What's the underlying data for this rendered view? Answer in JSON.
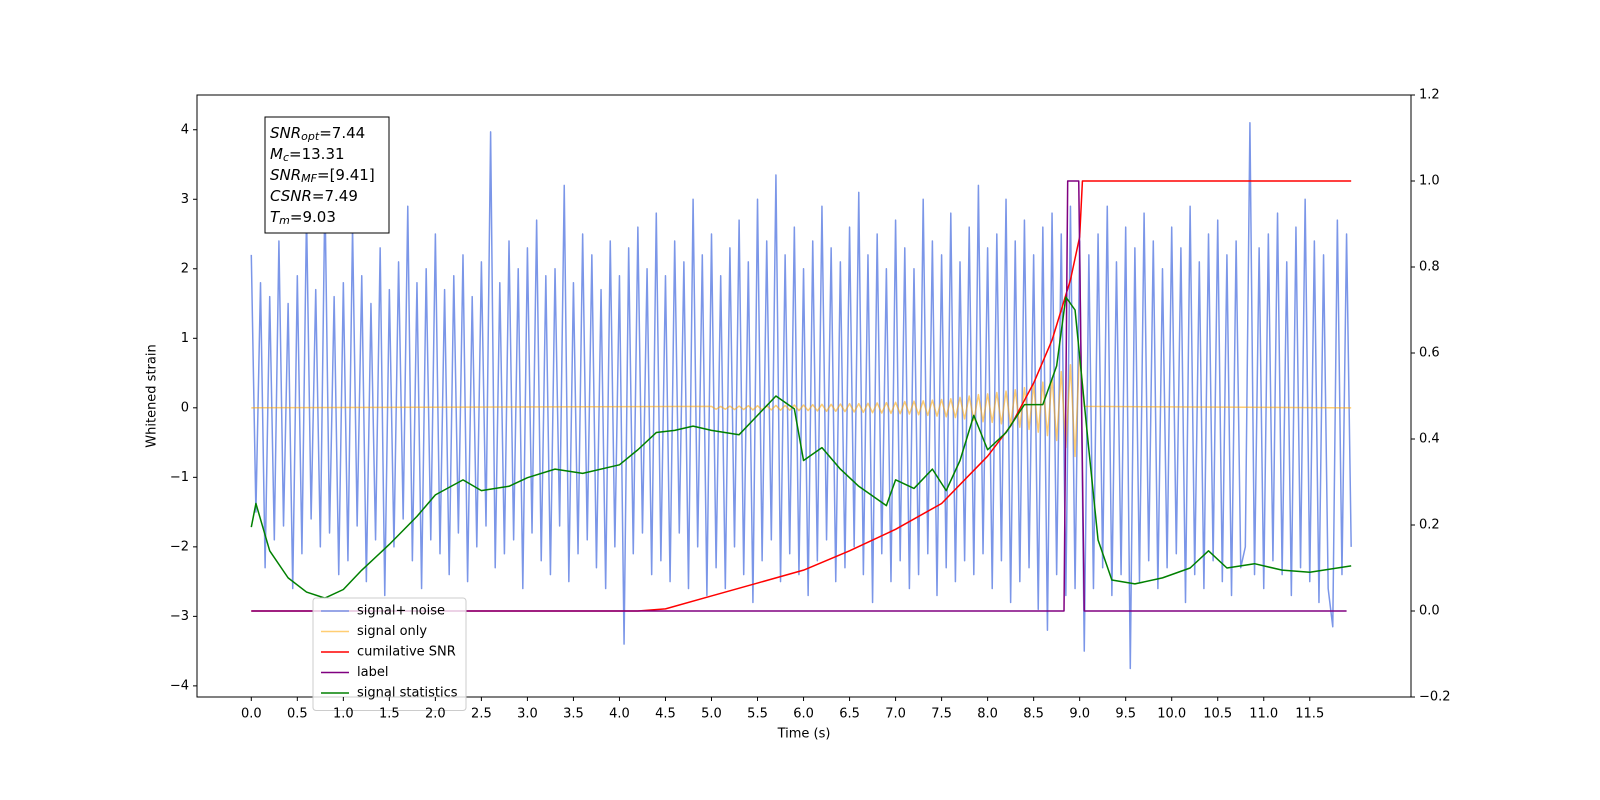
{
  "chart_data": {
    "type": "line",
    "xlabel": "Time (s)",
    "ylabel": "Whitened strain",
    "xlim": [
      -0.59,
      12.6
    ],
    "ylim": [
      -4.16,
      4.5
    ],
    "y2lim": [
      -0.2,
      1.2
    ],
    "xticks": [
      {
        "value": 0,
        "label": "0.0"
      },
      0.5,
      {
        "value": 1,
        "label": "1.0"
      },
      1.5,
      {
        "value": 2,
        "label": "2.0"
      },
      2.5,
      {
        "value": 3,
        "label": "3.0"
      },
      3.5,
      {
        "value": 4,
        "label": "4.0"
      },
      4.5,
      {
        "value": 5,
        "label": "5.0"
      },
      5.5,
      {
        "value": 6,
        "label": "6.0"
      },
      6.5,
      {
        "value": 7,
        "label": "7.0"
      },
      7.5,
      {
        "value": 8,
        "label": "8.0"
      },
      8.5,
      {
        "value": 9,
        "label": "9.0"
      },
      9.5,
      {
        "value": 10,
        "label": "10.0"
      },
      10.5,
      {
        "value": 11,
        "label": "11.0"
      },
      11.5
    ],
    "yticks": [
      {
        "value": -4,
        "label": "−4"
      },
      {
        "value": -3,
        "label": "−3"
      },
      {
        "value": -2,
        "label": "−2"
      },
      {
        "value": -1,
        "label": "−1"
      },
      0,
      1,
      2,
      3,
      4
    ],
    "y2ticks": [
      {
        "value": -0.2,
        "label": "−0.2"
      },
      {
        "value": 0,
        "label": "0.0"
      },
      0.2,
      0.4,
      0.6,
      0.8,
      {
        "value": 1,
        "label": "1.0"
      },
      1.2
    ],
    "legend": "lower left",
    "annotation": [
      {
        "text": "SNR",
        "sub": "opt",
        "rest": "=7.44"
      },
      {
        "text": "M",
        "sub": "c",
        "rest": "=13.31"
      },
      {
        "text": "SNR",
        "sub": "MF",
        "rest": "=[9.41]"
      },
      {
        "text": "CSNR",
        "sub": "",
        "rest": "=7.49"
      },
      {
        "text": "T",
        "sub": "m",
        "rest": "=9.03"
      }
    ],
    "series": [
      {
        "name": "signal+ noise",
        "color": "#7b96e8",
        "x": [
          0,
          0.05,
          0.1,
          0.15,
          0.2,
          0.25,
          0.3,
          0.35,
          0.4,
          0.45,
          0.5,
          0.55,
          0.6,
          0.65,
          0.7,
          0.75,
          0.8,
          0.85,
          0.9,
          0.95,
          1,
          1.05,
          1.1,
          1.15,
          1.2,
          1.25,
          1.3,
          1.35,
          1.4,
          1.45,
          1.5,
          1.55,
          1.6,
          1.65,
          1.7,
          1.75,
          1.8,
          1.85,
          1.9,
          1.95,
          2,
          2.05,
          2.1,
          2.15,
          2.2,
          2.25,
          2.3,
          2.35,
          2.4,
          2.45,
          2.5,
          2.55,
          2.6,
          2.65,
          2.7,
          2.75,
          2.8,
          2.85,
          2.9,
          2.95,
          3,
          3.05,
          3.1,
          3.15,
          3.2,
          3.25,
          3.3,
          3.35,
          3.4,
          3.45,
          3.5,
          3.55,
          3.6,
          3.65,
          3.7,
          3.75,
          3.8,
          3.85,
          3.9,
          3.95,
          4,
          4.05,
          4.1,
          4.15,
          4.2,
          4.25,
          4.3,
          4.35,
          4.4,
          4.45,
          4.5,
          4.55,
          4.6,
          4.65,
          4.7,
          4.75,
          4.8,
          4.85,
          4.9,
          4.95,
          5,
          5.05,
          5.1,
          5.15,
          5.2,
          5.25,
          5.3,
          5.35,
          5.4,
          5.45,
          5.5,
          5.55,
          5.6,
          5.65,
          5.7,
          5.75,
          5.8,
          5.85,
          5.9,
          5.95,
          6,
          6.05,
          6.1,
          6.15,
          6.2,
          6.25,
          6.3,
          6.35,
          6.4,
          6.45,
          6.5,
          6.55,
          6.6,
          6.65,
          6.7,
          6.75,
          6.8,
          6.85,
          6.9,
          6.95,
          7,
          7.05,
          7.1,
          7.15,
          7.2,
          7.25,
          7.3,
          7.35,
          7.4,
          7.45,
          7.5,
          7.55,
          7.6,
          7.65,
          7.7,
          7.75,
          7.8,
          7.85,
          7.9,
          7.95,
          8,
          8.05,
          8.1,
          8.15,
          8.2,
          8.25,
          8.3,
          8.35,
          8.4,
          8.45,
          8.5,
          8.55,
          8.6,
          8.65,
          8.7,
          8.75,
          8.8,
          8.85,
          8.9,
          8.95,
          9,
          9.05,
          9.1,
          9.15,
          9.2,
          9.25,
          9.3,
          9.35,
          9.4,
          9.45,
          9.5,
          9.55,
          9.6,
          9.65,
          9.7,
          9.75,
          9.8,
          9.85,
          9.9,
          9.95,
          10,
          10.05,
          10.1,
          10.15,
          10.2,
          10.25,
          10.3,
          10.35,
          10.4,
          10.45,
          10.5,
          10.55,
          10.6,
          10.65,
          10.7,
          10.75,
          10.8,
          10.85,
          10.9,
          10.95,
          11,
          11.05,
          11.1,
          11.15,
          11.2,
          11.25,
          11.3,
          11.35,
          11.4,
          11.45,
          11.5,
          11.55,
          11.6,
          11.65,
          11.7,
          11.75,
          11.8,
          11.85,
          11.9,
          11.95
        ],
        "values": [
          2.2,
          -1.5,
          1.8,
          -2.3,
          1.6,
          -1.9,
          2.4,
          -1.7,
          1.5,
          -2.6,
          1.9,
          -2.1,
          2.8,
          -1.6,
          1.7,
          -2.0,
          3.1,
          -1.8,
          1.6,
          -2.4,
          1.8,
          -2.2,
          2.6,
          -1.7,
          1.9,
          -2.5,
          1.5,
          -1.9,
          2.3,
          -2.7,
          1.7,
          -2.0,
          2.1,
          -1.6,
          2.9,
          -2.2,
          1.8,
          -2.6,
          2.0,
          -1.9,
          2.5,
          -2.1,
          1.7,
          -2.4,
          1.9,
          -1.8,
          2.2,
          -2.5,
          1.6,
          -2.0,
          2.1,
          -1.7,
          3.97,
          -2.3,
          1.8,
          -2.1,
          2.4,
          -1.9,
          2.0,
          -2.6,
          2.3,
          -1.8,
          2.7,
          -2.2,
          1.9,
          -2.4,
          2.0,
          -1.7,
          3.2,
          -2.5,
          1.8,
          -2.1,
          2.5,
          -1.9,
          2.2,
          -2.3,
          1.7,
          -2.6,
          2.4,
          -2.0,
          1.9,
          -3.4,
          2.3,
          -2.1,
          2.6,
          -1.8,
          2.0,
          -2.4,
          2.8,
          -2.2,
          1.9,
          -2.5,
          2.4,
          -1.8,
          2.1,
          -2.6,
          3.0,
          -2.0,
          2.2,
          -2.7,
          2.5,
          -2.3,
          1.9,
          -2.6,
          2.3,
          -2.0,
          2.7,
          -2.4,
          2.1,
          -2.8,
          3.0,
          -2.2,
          2.4,
          -1.9,
          3.35,
          -2.5,
          2.2,
          -2.1,
          2.6,
          -2.4,
          2.0,
          -2.7,
          2.4,
          -2.2,
          2.9,
          -1.9,
          2.3,
          -2.5,
          2.1,
          -2.3,
          2.6,
          -2.0,
          3.1,
          -2.4,
          2.2,
          -2.8,
          2.5,
          -2.1,
          2.0,
          -2.5,
          2.7,
          -2.2,
          2.3,
          -2.6,
          2.0,
          -2.4,
          3.0,
          -2.1,
          2.4,
          -2.7,
          2.2,
          -2.3,
          2.8,
          -2.5,
          2.1,
          -2.2,
          2.6,
          -2.4,
          3.2,
          -2.1,
          2.3,
          -2.6,
          2.5,
          -2.2,
          3.0,
          -2.8,
          2.4,
          -2.5,
          2.7,
          -2.3,
          2.2,
          -2.9,
          2.6,
          -3.2,
          2.8,
          -2.4,
          2.5,
          -2.7,
          2.9,
          -2.6,
          2.4,
          -3.5,
          2.2,
          -2.6,
          2.5,
          -2.3,
          2.9,
          -2.7,
          2.1,
          -2.4,
          2.6,
          -3.75,
          2.3,
          -2.5,
          2.8,
          -2.2,
          2.4,
          -2.6,
          2.0,
          -2.3,
          2.6,
          -2.1,
          2.3,
          -2.8,
          2.9,
          -2.4,
          2.1,
          -2.6,
          2.5,
          -2.2,
          2.7,
          -2.5,
          2.2,
          -2.7,
          2.4,
          -2.3,
          -2.0,
          4.1,
          -2.4,
          2.3,
          -2.6,
          2.5,
          -2.2,
          2.8,
          -2.4,
          2.1,
          -2.7,
          2.6,
          -2.3,
          3.0,
          -2.5,
          2.4,
          -2.8,
          2.2,
          -2.6,
          -3.15,
          2.7,
          -2.4,
          2.5,
          -2.0
        ]
      },
      {
        "name": "signal only",
        "color": "#ffa500",
        "x": [
          0,
          5,
          5.05,
          5.1,
          5.15,
          5.2,
          5.25,
          5.3,
          5.35,
          5.4,
          5.45,
          5.5,
          5.55,
          5.6,
          5.65,
          5.7,
          5.75,
          5.8,
          5.85,
          5.9,
          5.95,
          6,
          6.05,
          6.1,
          6.15,
          6.2,
          6.25,
          6.3,
          6.35,
          6.4,
          6.45,
          6.5,
          6.55,
          6.6,
          6.65,
          6.7,
          6.75,
          6.8,
          6.85,
          6.9,
          6.95,
          7,
          7.05,
          7.1,
          7.15,
          7.2,
          7.25,
          7.3,
          7.35,
          7.4,
          7.45,
          7.5,
          7.55,
          7.6,
          7.65,
          7.7,
          7.75,
          7.8,
          7.85,
          7.9,
          7.95,
          8,
          8.05,
          8.1,
          8.15,
          8.2,
          8.25,
          8.3,
          8.35,
          8.4,
          8.45,
          8.5,
          8.55,
          8.6,
          8.65,
          8.7,
          8.75,
          8.8,
          8.85,
          8.9,
          8.95,
          9,
          9.05,
          11.95
        ],
        "values": [
          0,
          0.02,
          -0.02,
          0.02,
          -0.02,
          0.025,
          -0.025,
          0.025,
          -0.025,
          0.03,
          -0.03,
          0.03,
          -0.03,
          0.03,
          -0.03,
          0.035,
          -0.035,
          0.035,
          -0.035,
          0.04,
          -0.04,
          0.04,
          -0.04,
          0.045,
          -0.045,
          0.05,
          -0.05,
          0.05,
          -0.05,
          0.055,
          -0.055,
          0.06,
          -0.06,
          0.06,
          -0.065,
          0.065,
          -0.07,
          0.07,
          -0.075,
          0.075,
          -0.08,
          0.08,
          -0.085,
          0.09,
          -0.09,
          0.095,
          -0.1,
          0.1,
          -0.11,
          0.11,
          -0.12,
          0.12,
          -0.13,
          0.13,
          -0.14,
          0.15,
          -0.16,
          0.17,
          -0.18,
          0.19,
          -0.2,
          0.2,
          -0.21,
          0.22,
          -0.23,
          0.24,
          -0.25,
          0.26,
          -0.28,
          0.29,
          -0.31,
          0.33,
          -0.35,
          0.37,
          -0.4,
          0.43,
          -0.47,
          0.52,
          -0.57,
          0.62,
          -0.7,
          0.8,
          0.02,
          0
        ]
      },
      {
        "name": "cumilative SNR",
        "color": "#ff0000",
        "axis": "y2",
        "x": [
          0,
          4.2,
          4.5,
          5,
          5.5,
          6,
          6.5,
          7,
          7.5,
          8,
          8.25,
          8.5,
          8.7,
          8.8,
          8.9,
          9,
          9.03,
          11.95
        ],
        "values": [
          0,
          0,
          0.005,
          0.035,
          0.065,
          0.095,
          0.14,
          0.19,
          0.25,
          0.36,
          0.43,
          0.53,
          0.63,
          0.7,
          0.77,
          0.87,
          1,
          1
        ]
      },
      {
        "name": "label",
        "color": "#800080",
        "axis": "y2",
        "x": [
          0,
          8.83,
          8.87,
          8.99,
          9.05,
          11.9
        ],
        "values": [
          0,
          0,
          1,
          1,
          0,
          0
        ]
      },
      {
        "name": "signal statistics",
        "color": "#008000",
        "axis": "y2",
        "x": [
          0,
          0.05,
          0.2,
          0.4,
          0.6,
          0.8,
          1,
          1.2,
          1.5,
          1.8,
          2,
          2.3,
          2.5,
          2.8,
          3,
          3.3,
          3.6,
          4,
          4.2,
          4.4,
          4.6,
          4.8,
          5,
          5.3,
          5.5,
          5.7,
          5.9,
          6,
          6.2,
          6.4,
          6.6,
          6.9,
          7,
          7.2,
          7.4,
          7.55,
          7.7,
          7.85,
          8,
          8.2,
          8.4,
          8.6,
          8.75,
          8.85,
          8.95,
          9.1,
          9.2,
          9.35,
          9.6,
          9.9,
          10.2,
          10.4,
          10.6,
          10.9,
          11.2,
          11.5,
          11.95
        ],
        "values": [
          0.195,
          0.25,
          0.14,
          0.077,
          0.044,
          0.03,
          0.05,
          0.095,
          0.155,
          0.22,
          0.27,
          0.305,
          0.28,
          0.29,
          0.31,
          0.33,
          0.32,
          0.34,
          0.375,
          0.415,
          0.42,
          0.43,
          0.42,
          0.41,
          0.455,
          0.5,
          0.47,
          0.35,
          0.38,
          0.33,
          0.29,
          0.245,
          0.305,
          0.285,
          0.33,
          0.28,
          0.35,
          0.455,
          0.375,
          0.415,
          0.48,
          0.48,
          0.57,
          0.73,
          0.7,
          0.375,
          0.165,
          0.072,
          0.063,
          0.077,
          0.1,
          0.14,
          0.1,
          0.11,
          0.095,
          0.09,
          0.105
        ]
      }
    ]
  }
}
